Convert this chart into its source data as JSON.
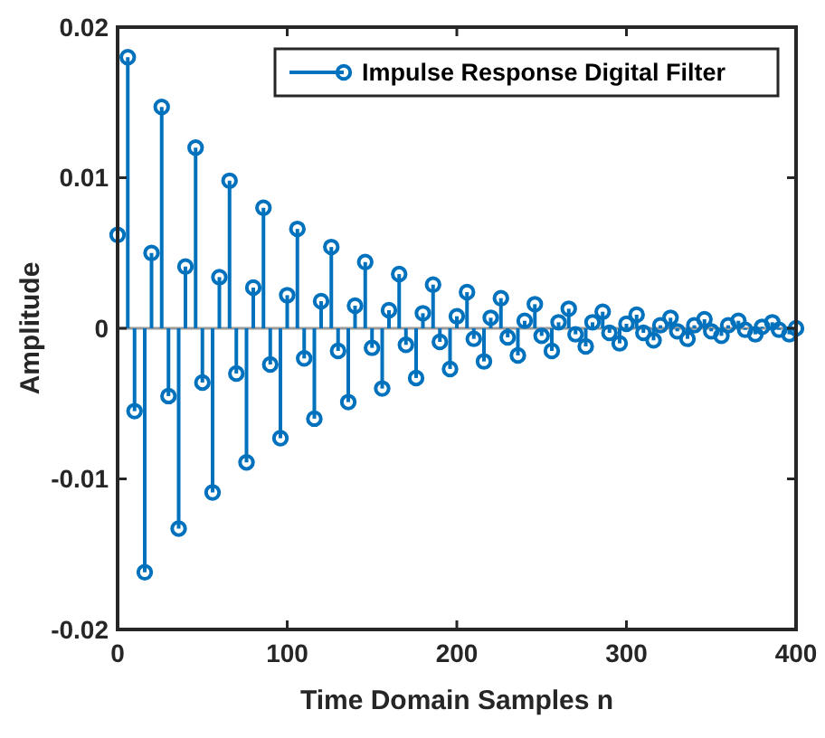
{
  "chart_data": {
    "type": "lollipop",
    "xlabel": "Time Domain Samples n",
    "ylabel": "Amplitude",
    "xlim": [
      0,
      400
    ],
    "xticks": [
      0,
      100,
      200,
      300,
      400
    ],
    "ylim": [
      -0.02,
      0.02
    ],
    "yticks": [
      -0.02,
      -0.01,
      0,
      0.01,
      0.02
    ],
    "ref_lines": [
      {
        "axis": "y",
        "value": 0,
        "color": "#999999"
      }
    ],
    "legend": "top right",
    "marker": "circle",
    "series": [
      {
        "name": "Impulse Response Digital Filter",
        "color": "#0072bd",
        "x": [
          0,
          6,
          10,
          16,
          20,
          26,
          30,
          36,
          40,
          46,
          50,
          56,
          60,
          66,
          70,
          76,
          80,
          86,
          90,
          96,
          100,
          106,
          110,
          116,
          120,
          126,
          130,
          136,
          140,
          146,
          150,
          156,
          160,
          166,
          170,
          176,
          180,
          186,
          190,
          196,
          200,
          206,
          210,
          216,
          220,
          226,
          230,
          236,
          240,
          246,
          250,
          256,
          260,
          266,
          270,
          276,
          280,
          286,
          290,
          296,
          300,
          306,
          310,
          316,
          320,
          326,
          330,
          336,
          340,
          346,
          350,
          356,
          360,
          366,
          370,
          376,
          380,
          386,
          390,
          396,
          400
        ],
        "values": [
          0.0062,
          0.018,
          -0.0055,
          -0.0162,
          0.005,
          0.0147,
          -0.0045,
          -0.0133,
          0.0041,
          0.012,
          -0.0036,
          -0.0109,
          0.0034,
          0.0098,
          -0.003,
          -0.0089,
          0.0027,
          0.008,
          -0.0024,
          -0.0073,
          0.0022,
          0.0066,
          -0.002,
          -0.006,
          0.0018,
          0.0054,
          -0.0015,
          -0.0049,
          0.0015,
          0.0044,
          -0.0013,
          -0.004,
          0.0012,
          0.0036,
          -0.0011,
          -0.0033,
          0.001,
          0.0029,
          -0.0009,
          -0.0027,
          0.0008,
          0.0024,
          -0.0007,
          -0.0022,
          0.0007,
          0.002,
          -0.0006,
          -0.0018,
          0.0005,
          0.0016,
          -0.0005,
          -0.0015,
          0.0004,
          0.0013,
          -0.0004,
          -0.0012,
          0.0004,
          0.0011,
          -0.0003,
          -0.001,
          0.0003,
          0.0009,
          -0.0003,
          -0.0008,
          0.0002,
          0.0007,
          -0.0002,
          -0.0007,
          0.0002,
          0.0006,
          -0.0002,
          -0.0005,
          0.0002,
          0.0005,
          -0.0001,
          -0.0004,
          0.0001,
          0.0004,
          -0.0001,
          -0.0004,
          0
        ]
      }
    ]
  }
}
